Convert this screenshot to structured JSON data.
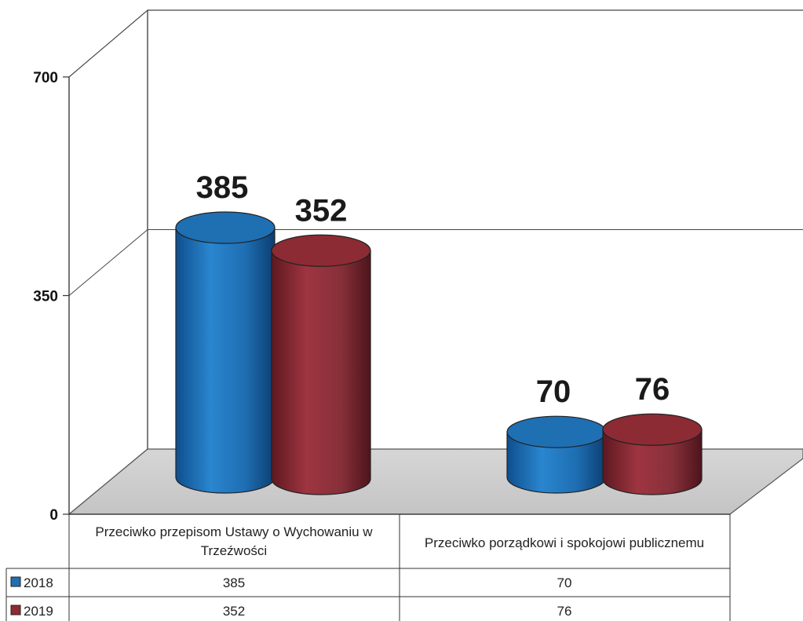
{
  "chart_data": {
    "type": "bar",
    "style": "3d-cylinder",
    "categories": [
      "Przeciwko przepisom Ustawy o Wychowaniu w Trzeźwości",
      "Przeciwko porządkowi i spokojowi publicznemu"
    ],
    "category_lines": [
      [
        "Przeciwko przepisom Ustawy o Wychowaniu w",
        "Trzeźwości"
      ],
      [
        "Przeciwko porządkowi i spokojowi publicznemu"
      ]
    ],
    "series": [
      {
        "name": "2018",
        "values": [
          385,
          70
        ],
        "color": "#1f6fb3"
      },
      {
        "name": "2019",
        "values": [
          352,
          76
        ],
        "color": "#8c2b33"
      }
    ],
    "ylim": [
      0,
      700
    ],
    "yticks": [
      "0",
      "350",
      "700"
    ],
    "data_labels": true,
    "data_table": true,
    "gridlines": true
  }
}
